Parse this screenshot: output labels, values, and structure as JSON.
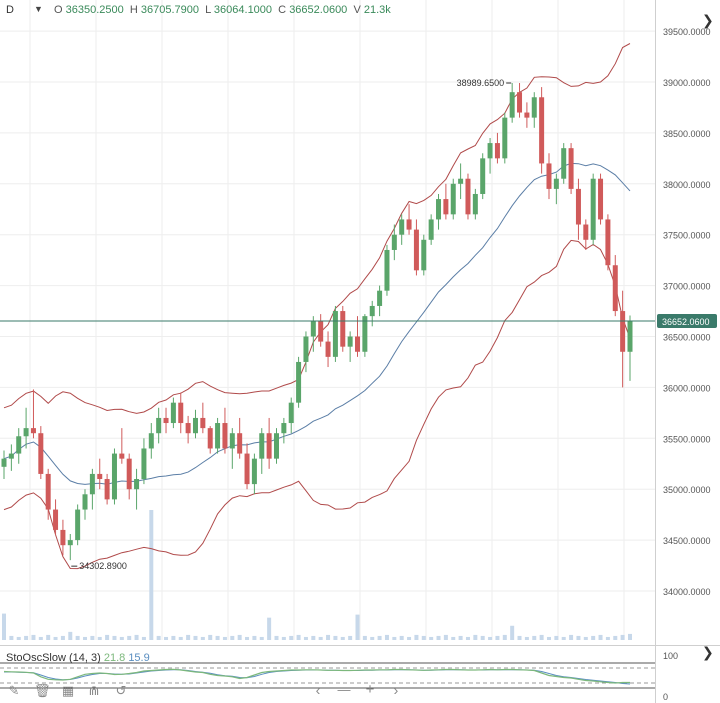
{
  "header": {
    "symbol_menu": "D",
    "open_label": "O",
    "open": "36350.2500",
    "high_label": "H",
    "high": "36705.7900",
    "low_label": "L",
    "low": "36064.1000",
    "close_label": "C",
    "close": "36652.0600",
    "volume_label": "V",
    "volume": "21.3k"
  },
  "indicator": {
    "name": "StoOscSlow (14, 3)",
    "k_value": "21.8",
    "d_value": "15.9",
    "k_color": "#7cb87c",
    "d_color": "#5a8ec0",
    "levels": [
      "100",
      "0"
    ],
    "ylim": [
      0,
      100
    ]
  },
  "colors": {
    "up": "#5aa56a",
    "down": "#d05a5a",
    "band": "#b04a4a",
    "mid": "#5b7ea6",
    "volume": "#c7d8ea",
    "price_line": "#3a7a6a",
    "price_label_bg": "#3a7a6a"
  },
  "price_marker": "36652.0600",
  "annotations": [
    {
      "text": "38989.6500",
      "kind": "high"
    },
    {
      "text": "34302.8900",
      "kind": "low"
    }
  ],
  "icons": [
    "pencil-icon",
    "trash-icon",
    "grid-icon",
    "magnet-icon",
    "undo-icon",
    "chevron-left-icon",
    "minus-icon",
    "plus-icon",
    "chevron-right-icon",
    "collapse-icon"
  ],
  "chart_data": {
    "type": "candlestick",
    "y_ticks": [
      "34000.0000",
      "34500.0000",
      "35000.0000",
      "35500.0000",
      "36000.0000",
      "36500.0000",
      "37000.0000",
      "37500.0000",
      "38000.0000",
      "38500.0000",
      "39000.0000",
      "39500.0000"
    ],
    "ylim": [
      33600,
      39750
    ],
    "candles": [
      [
        35220,
        35380,
        35100,
        35300
      ],
      [
        35300,
        35440,
        35180,
        35350
      ],
      [
        35350,
        35600,
        35250,
        35520
      ],
      [
        35520,
        35800,
        35400,
        35600
      ],
      [
        35600,
        35980,
        35500,
        35550
      ],
      [
        35550,
        35620,
        35100,
        35150
      ],
      [
        35150,
        35200,
        34700,
        34800
      ],
      [
        34800,
        34900,
        34550,
        34600
      ],
      [
        34600,
        34700,
        34350,
        34450
      ],
      [
        34450,
        34560,
        34303,
        34500
      ],
      [
        34500,
        34850,
        34450,
        34800
      ],
      [
        34800,
        35000,
        34700,
        34950
      ],
      [
        34950,
        35200,
        34800,
        35150
      ],
      [
        35150,
        35300,
        35000,
        35100
      ],
      [
        35100,
        35150,
        34850,
        34900
      ],
      [
        34900,
        35400,
        34850,
        35350
      ],
      [
        35350,
        35600,
        35250,
        35300
      ],
      [
        35300,
        35350,
        34900,
        35000
      ],
      [
        35000,
        35200,
        34800,
        35100
      ],
      [
        35100,
        35500,
        35050,
        35400
      ],
      [
        35400,
        35650,
        35300,
        35550
      ],
      [
        35550,
        35800,
        35450,
        35700
      ],
      [
        35700,
        35800,
        35550,
        35650
      ],
      [
        35650,
        35900,
        35600,
        35850
      ],
      [
        35850,
        35950,
        35550,
        35650
      ],
      [
        35650,
        35720,
        35450,
        35550
      ],
      [
        35550,
        35780,
        35500,
        35700
      ],
      [
        35700,
        35850,
        35550,
        35600
      ],
      [
        35600,
        35620,
        35350,
        35400
      ],
      [
        35400,
        35700,
        35350,
        35650
      ],
      [
        35650,
        35800,
        35350,
        35400
      ],
      [
        35400,
        35600,
        35200,
        35550
      ],
      [
        35550,
        35700,
        35300,
        35350
      ],
      [
        35350,
        35450,
        35000,
        35050
      ],
      [
        35050,
        35350,
        34950,
        35300
      ],
      [
        35300,
        35600,
        35150,
        35550
      ],
      [
        35550,
        35700,
        35200,
        35300
      ],
      [
        35300,
        35600,
        35250,
        35550
      ],
      [
        35550,
        35700,
        35450,
        35650
      ],
      [
        35650,
        35900,
        35550,
        35850
      ],
      [
        35850,
        36300,
        35800,
        36250
      ],
      [
        36250,
        36550,
        36150,
        36500
      ],
      [
        36500,
        36700,
        36350,
        36650
      ],
      [
        36650,
        36720,
        36400,
        36450
      ],
      [
        36450,
        36550,
        36200,
        36300
      ],
      [
        36300,
        36800,
        36250,
        36750
      ],
      [
        36750,
        36800,
        36350,
        36400
      ],
      [
        36400,
        36550,
        36250,
        36500
      ],
      [
        36500,
        36700,
        36300,
        36350
      ],
      [
        36350,
        36720,
        36300,
        36700
      ],
      [
        36700,
        36850,
        36600,
        36800
      ],
      [
        36800,
        37000,
        36700,
        36950
      ],
      [
        36950,
        37400,
        36900,
        37350
      ],
      [
        37350,
        37600,
        37250,
        37500
      ],
      [
        37500,
        37700,
        37400,
        37650
      ],
      [
        37650,
        37800,
        37500,
        37550
      ],
      [
        37550,
        37650,
        37100,
        37150
      ],
      [
        37150,
        37500,
        37100,
        37450
      ],
      [
        37450,
        37700,
        37400,
        37650
      ],
      [
        37650,
        37900,
        37550,
        37850
      ],
      [
        37850,
        38000,
        37650,
        37700
      ],
      [
        37700,
        38050,
        37650,
        38000
      ],
      [
        38000,
        38200,
        37850,
        38050
      ],
      [
        38050,
        38100,
        37650,
        37700
      ],
      [
        37700,
        37950,
        37650,
        37900
      ],
      [
        37900,
        38300,
        37850,
        38250
      ],
      [
        38250,
        38450,
        38100,
        38400
      ],
      [
        38400,
        38500,
        38200,
        38250
      ],
      [
        38250,
        38700,
        38200,
        38650
      ],
      [
        38650,
        38990,
        38600,
        38900
      ],
      [
        38900,
        38990,
        38650,
        38700
      ],
      [
        38700,
        38800,
        38550,
        38650
      ],
      [
        38650,
        38900,
        38550,
        38850
      ],
      [
        38850,
        38950,
        38100,
        38200
      ],
      [
        38200,
        38300,
        37850,
        37950
      ],
      [
        37950,
        38100,
        37800,
        38050
      ],
      [
        38050,
        38400,
        38000,
        38350
      ],
      [
        38350,
        38400,
        37900,
        37950
      ],
      [
        37950,
        38050,
        37450,
        37600
      ],
      [
        37600,
        37650,
        37350,
        37450
      ],
      [
        37450,
        38100,
        37400,
        38050
      ],
      [
        38050,
        38100,
        37600,
        37650
      ],
      [
        37650,
        37700,
        37150,
        37200
      ],
      [
        37200,
        37300,
        36700,
        36750
      ],
      [
        36750,
        36950,
        36000,
        36350
      ],
      [
        36350,
        36706,
        36064,
        36652
      ]
    ],
    "volume": [
      26,
      4,
      3,
      4,
      5,
      3,
      5,
      3,
      4,
      8,
      4,
      3,
      4,
      3,
      5,
      4,
      3,
      4,
      5,
      3,
      128,
      4,
      3,
      4,
      3,
      5,
      4,
      3,
      5,
      4,
      3,
      4,
      5,
      3,
      4,
      3,
      22,
      4,
      3,
      4,
      5,
      3,
      4,
      3,
      5,
      4,
      3,
      4,
      25,
      4,
      3,
      4,
      5,
      3,
      4,
      3,
      5,
      4,
      3,
      4,
      5,
      3,
      4,
      3,
      5,
      4,
      3,
      4,
      5,
      14,
      4,
      3,
      4,
      5,
      3,
      4,
      3,
      5,
      4,
      3,
      4,
      5,
      3,
      4,
      5,
      6
    ],
    "stoch_k": [
      66,
      65,
      64,
      63,
      60,
      45,
      35,
      33,
      32,
      35,
      45,
      55,
      58,
      60,
      58,
      54,
      55,
      58,
      62,
      68,
      70,
      72,
      74,
      75,
      72,
      68,
      64,
      62,
      55,
      50,
      48,
      45,
      38,
      42,
      52,
      62,
      66,
      68,
      70,
      72,
      72,
      73,
      73,
      72,
      71,
      71,
      70,
      70,
      71,
      72,
      72,
      73,
      73,
      74,
      74,
      73,
      72,
      71,
      72,
      73,
      74,
      74,
      73,
      72,
      72,
      73,
      74,
      73,
      74,
      74,
      73,
      72,
      70,
      60,
      50,
      46,
      42,
      40,
      35,
      30,
      28,
      25,
      22,
      20,
      22,
      22
    ],
    "stoch_d": [
      64,
      64,
      63,
      62,
      61,
      52,
      42,
      36,
      33,
      34,
      40,
      48,
      54,
      58,
      58,
      56,
      55,
      56,
      60,
      64,
      68,
      70,
      72,
      73,
      73,
      70,
      66,
      63,
      59,
      53,
      49,
      47,
      42,
      41,
      46,
      55,
      62,
      66,
      68,
      70,
      71,
      72,
      72,
      72,
      71,
      71,
      70,
      70,
      70,
      71,
      71,
      72,
      72,
      73,
      73,
      73,
      72,
      71,
      71,
      72,
      73,
      73,
      73,
      72,
      72,
      72,
      73,
      73,
      73,
      73,
      73,
      72,
      71,
      66,
      58,
      50,
      45,
      42,
      38,
      34,
      31,
      28,
      25,
      22,
      18,
      16
    ]
  }
}
